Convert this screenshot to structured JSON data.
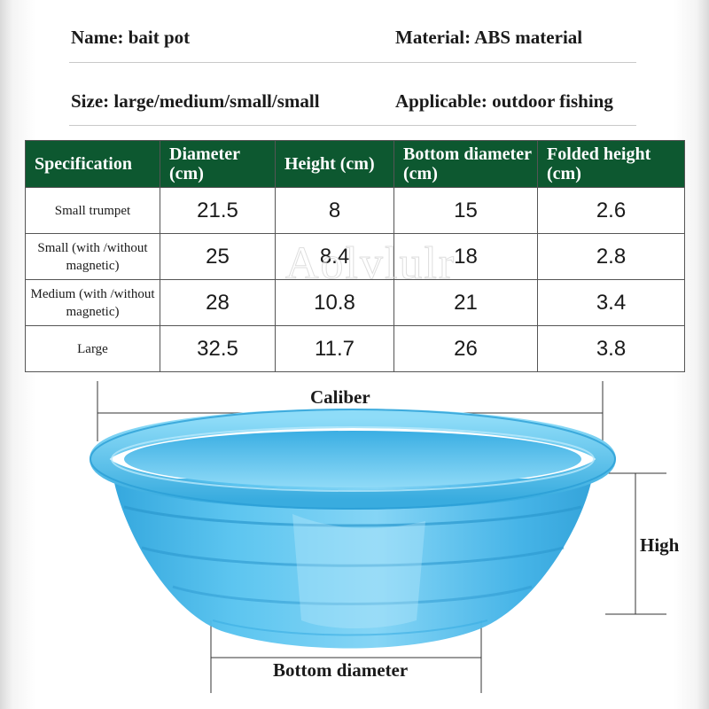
{
  "info": {
    "name": "Name: bait pot",
    "material": "Material: ABS material",
    "size": "Size: large/medium/small/small",
    "applicable": "Applicable: outdoor fishing"
  },
  "table": {
    "headers": [
      "Specification",
      "Diameter (cm)",
      "Height (cm)",
      "Bottom diameter (cm)",
      "Folded height (cm)"
    ],
    "rows": [
      {
        "label": "Small trumpet",
        "values": [
          "21.5",
          "8",
          "15",
          "2.6"
        ]
      },
      {
        "label": "Small (with /without magnetic)",
        "values": [
          "25",
          "8.4",
          "18",
          "2.8"
        ]
      },
      {
        "label": "Medium (with /without magnetic)",
        "values": [
          "28",
          "10.8",
          "21",
          "3.4"
        ]
      },
      {
        "label": "Large",
        "values": [
          "32.5",
          "11.7",
          "26",
          "3.8"
        ]
      }
    ]
  },
  "watermark": "Aolvlulr",
  "diagram": {
    "caliber_label": "Caliber",
    "height_label": "High",
    "bottom_label": "Bottom diameter"
  },
  "colors": {
    "header_green": "#0d5830",
    "bowl_blue": "#3fb4e8"
  }
}
